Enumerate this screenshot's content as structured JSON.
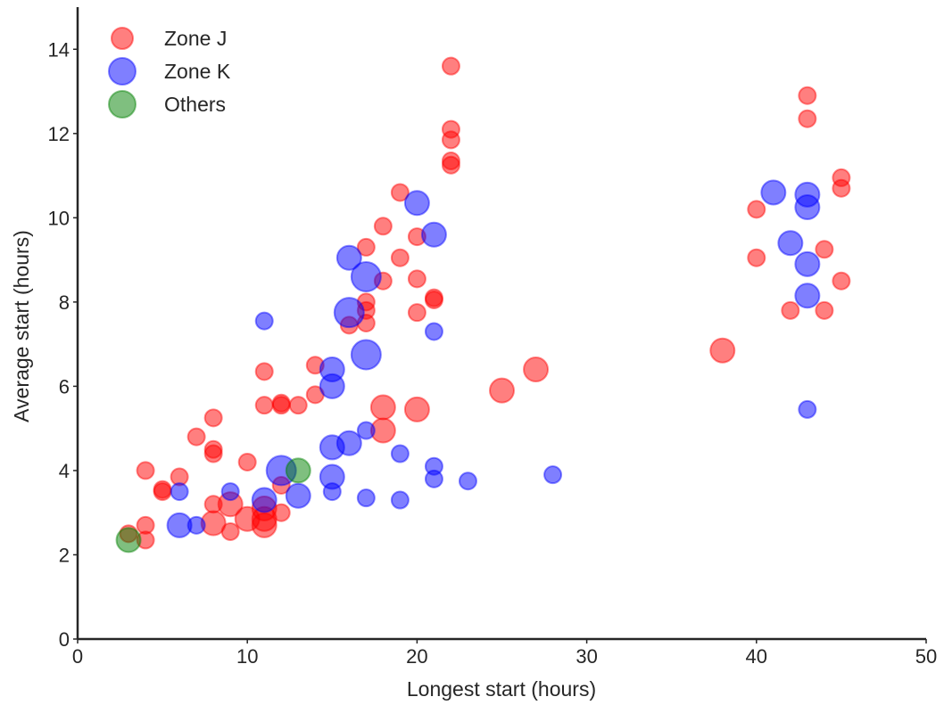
{
  "chart_data": {
    "type": "scatter",
    "title": "",
    "xlabel": "Longest start (hours)",
    "ylabel": "Average start (hours)",
    "xlim": [
      0,
      50
    ],
    "ylim": [
      0,
      15
    ],
    "xticks": [
      0,
      10,
      20,
      30,
      40,
      50
    ],
    "yticks": [
      0,
      2,
      4,
      6,
      8,
      10,
      12,
      14
    ],
    "grid": false,
    "legend_position": "top-left",
    "series": [
      {
        "name": "Zone J",
        "color": "#ff0000",
        "points": [
          {
            "x": 3,
            "y": 2.5,
            "s": 1
          },
          {
            "x": 4,
            "y": 2.35,
            "s": 1
          },
          {
            "x": 4,
            "y": 2.7,
            "s": 1
          },
          {
            "x": 4,
            "y": 4.0,
            "s": 1
          },
          {
            "x": 5,
            "y": 3.55,
            "s": 1
          },
          {
            "x": 5,
            "y": 3.5,
            "s": 1
          },
          {
            "x": 6,
            "y": 3.85,
            "s": 1
          },
          {
            "x": 7,
            "y": 4.8,
            "s": 1
          },
          {
            "x": 8,
            "y": 5.25,
            "s": 1
          },
          {
            "x": 8,
            "y": 4.5,
            "s": 1
          },
          {
            "x": 8,
            "y": 4.4,
            "s": 1
          },
          {
            "x": 8,
            "y": 3.2,
            "s": 1
          },
          {
            "x": 8,
            "y": 2.75,
            "s": 2
          },
          {
            "x": 9,
            "y": 3.2,
            "s": 2
          },
          {
            "x": 9,
            "y": 2.55,
            "s": 1
          },
          {
            "x": 10,
            "y": 4.2,
            "s": 1
          },
          {
            "x": 10,
            "y": 2.85,
            "s": 2
          },
          {
            "x": 11,
            "y": 6.35,
            "s": 1
          },
          {
            "x": 11,
            "y": 5.55,
            "s": 1
          },
          {
            "x": 11,
            "y": 2.7,
            "s": 2
          },
          {
            "x": 11,
            "y": 2.85,
            "s": 2
          },
          {
            "x": 11,
            "y": 3.1,
            "s": 2
          },
          {
            "x": 12,
            "y": 5.6,
            "s": 1
          },
          {
            "x": 12,
            "y": 5.55,
            "s": 1
          },
          {
            "x": 12,
            "y": 3.0,
            "s": 1
          },
          {
            "x": 12,
            "y": 3.65,
            "s": 1
          },
          {
            "x": 13,
            "y": 5.55,
            "s": 1
          },
          {
            "x": 14,
            "y": 6.5,
            "s": 1
          },
          {
            "x": 14,
            "y": 5.8,
            "s": 1
          },
          {
            "x": 16,
            "y": 7.45,
            "s": 1
          },
          {
            "x": 17,
            "y": 9.3,
            "s": 1
          },
          {
            "x": 17,
            "y": 8.0,
            "s": 1
          },
          {
            "x": 17,
            "y": 7.8,
            "s": 1
          },
          {
            "x": 17,
            "y": 7.5,
            "s": 1
          },
          {
            "x": 18,
            "y": 9.8,
            "s": 1
          },
          {
            "x": 18,
            "y": 8.5,
            "s": 1
          },
          {
            "x": 18,
            "y": 5.5,
            "s": 2
          },
          {
            "x": 18,
            "y": 4.95,
            "s": 2
          },
          {
            "x": 19,
            "y": 10.6,
            "s": 1
          },
          {
            "x": 19,
            "y": 9.05,
            "s": 1
          },
          {
            "x": 20,
            "y": 9.55,
            "s": 1
          },
          {
            "x": 20,
            "y": 8.55,
            "s": 1
          },
          {
            "x": 20,
            "y": 7.75,
            "s": 1
          },
          {
            "x": 20,
            "y": 5.45,
            "s": 2
          },
          {
            "x": 21,
            "y": 8.1,
            "s": 1
          },
          {
            "x": 21,
            "y": 8.05,
            "s": 1
          },
          {
            "x": 22,
            "y": 13.6,
            "s": 1
          },
          {
            "x": 22,
            "y": 12.1,
            "s": 1
          },
          {
            "x": 22,
            "y": 11.85,
            "s": 1
          },
          {
            "x": 22,
            "y": 11.35,
            "s": 1
          },
          {
            "x": 22,
            "y": 11.25,
            "s": 1
          },
          {
            "x": 25,
            "y": 5.9,
            "s": 2
          },
          {
            "x": 27,
            "y": 6.4,
            "s": 2
          },
          {
            "x": 38,
            "y": 6.85,
            "s": 2
          },
          {
            "x": 40,
            "y": 10.2,
            "s": 1
          },
          {
            "x": 40,
            "y": 9.05,
            "s": 1
          },
          {
            "x": 42,
            "y": 7.8,
            "s": 1
          },
          {
            "x": 43,
            "y": 12.9,
            "s": 1
          },
          {
            "x": 43,
            "y": 12.35,
            "s": 1
          },
          {
            "x": 44,
            "y": 9.25,
            "s": 1
          },
          {
            "x": 44,
            "y": 7.8,
            "s": 1
          },
          {
            "x": 45,
            "y": 10.95,
            "s": 1
          },
          {
            "x": 45,
            "y": 10.7,
            "s": 1
          },
          {
            "x": 45,
            "y": 8.5,
            "s": 1
          }
        ]
      },
      {
        "name": "Zone K",
        "color": "#0000ff",
        "points": [
          {
            "x": 6,
            "y": 3.5,
            "s": 1
          },
          {
            "x": 6,
            "y": 2.7,
            "s": 2
          },
          {
            "x": 7,
            "y": 2.7,
            "s": 1
          },
          {
            "x": 9,
            "y": 3.5,
            "s": 1
          },
          {
            "x": 11,
            "y": 7.55,
            "s": 1
          },
          {
            "x": 11,
            "y": 3.3,
            "s": 2
          },
          {
            "x": 12,
            "y": 4.0,
            "s": 3
          },
          {
            "x": 13,
            "y": 3.4,
            "s": 2
          },
          {
            "x": 15,
            "y": 6.4,
            "s": 2
          },
          {
            "x": 15,
            "y": 6.0,
            "s": 2
          },
          {
            "x": 15,
            "y": 4.55,
            "s": 2
          },
          {
            "x": 15,
            "y": 3.85,
            "s": 2
          },
          {
            "x": 15,
            "y": 3.5,
            "s": 1
          },
          {
            "x": 16,
            "y": 9.05,
            "s": 2
          },
          {
            "x": 16,
            "y": 7.75,
            "s": 3
          },
          {
            "x": 16,
            "y": 4.65,
            "s": 2
          },
          {
            "x": 17,
            "y": 8.6,
            "s": 3
          },
          {
            "x": 17,
            "y": 6.75,
            "s": 3
          },
          {
            "x": 17,
            "y": 4.95,
            "s": 1
          },
          {
            "x": 17,
            "y": 3.35,
            "s": 1
          },
          {
            "x": 19,
            "y": 4.4,
            "s": 1
          },
          {
            "x": 19,
            "y": 3.3,
            "s": 1
          },
          {
            "x": 20,
            "y": 10.35,
            "s": 2
          },
          {
            "x": 21,
            "y": 9.6,
            "s": 2
          },
          {
            "x": 21,
            "y": 7.3,
            "s": 1
          },
          {
            "x": 21,
            "y": 4.1,
            "s": 1
          },
          {
            "x": 21,
            "y": 3.8,
            "s": 1
          },
          {
            "x": 23,
            "y": 3.75,
            "s": 1
          },
          {
            "x": 28,
            "y": 3.9,
            "s": 1
          },
          {
            "x": 41,
            "y": 10.6,
            "s": 2
          },
          {
            "x": 42,
            "y": 9.4,
            "s": 2
          },
          {
            "x": 43,
            "y": 10.55,
            "s": 2
          },
          {
            "x": 43,
            "y": 10.25,
            "s": 2
          },
          {
            "x": 43,
            "y": 8.9,
            "s": 2
          },
          {
            "x": 43,
            "y": 8.15,
            "s": 2
          },
          {
            "x": 43,
            "y": 5.45,
            "s": 1
          }
        ]
      },
      {
        "name": "Others",
        "color": "#008000",
        "points": [
          {
            "x": 3,
            "y": 2.35,
            "s": 2
          },
          {
            "x": 13,
            "y": 4.0,
            "s": 2
          }
        ]
      }
    ]
  }
}
